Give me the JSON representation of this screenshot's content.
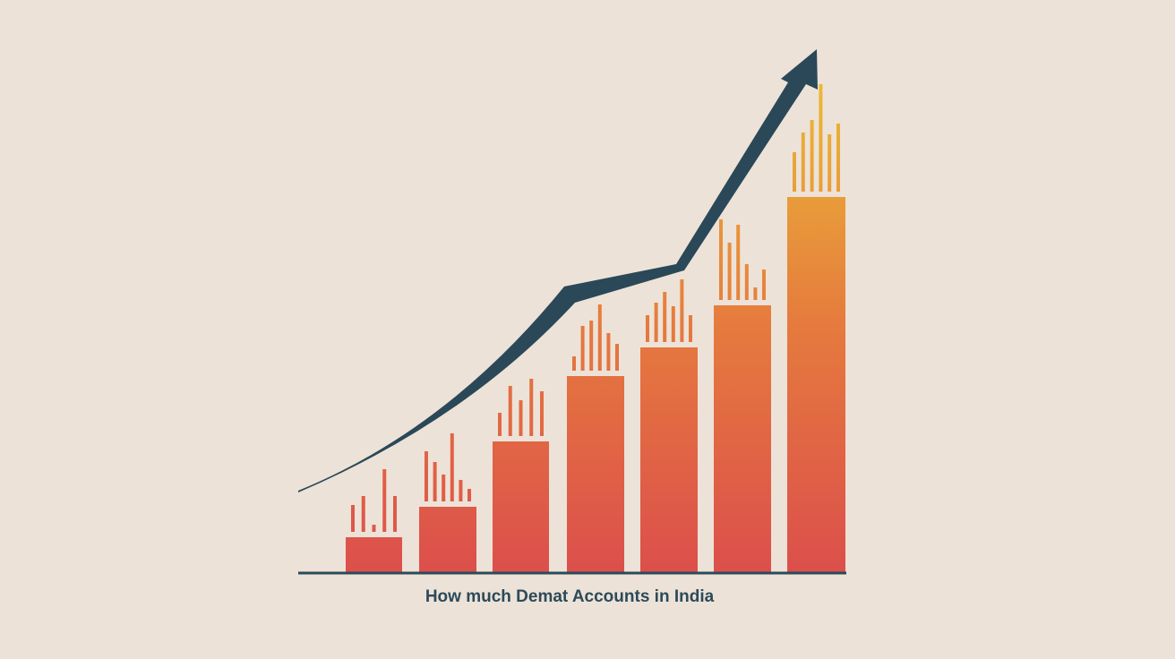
{
  "caption": "How much Demat Accounts in India"
}
